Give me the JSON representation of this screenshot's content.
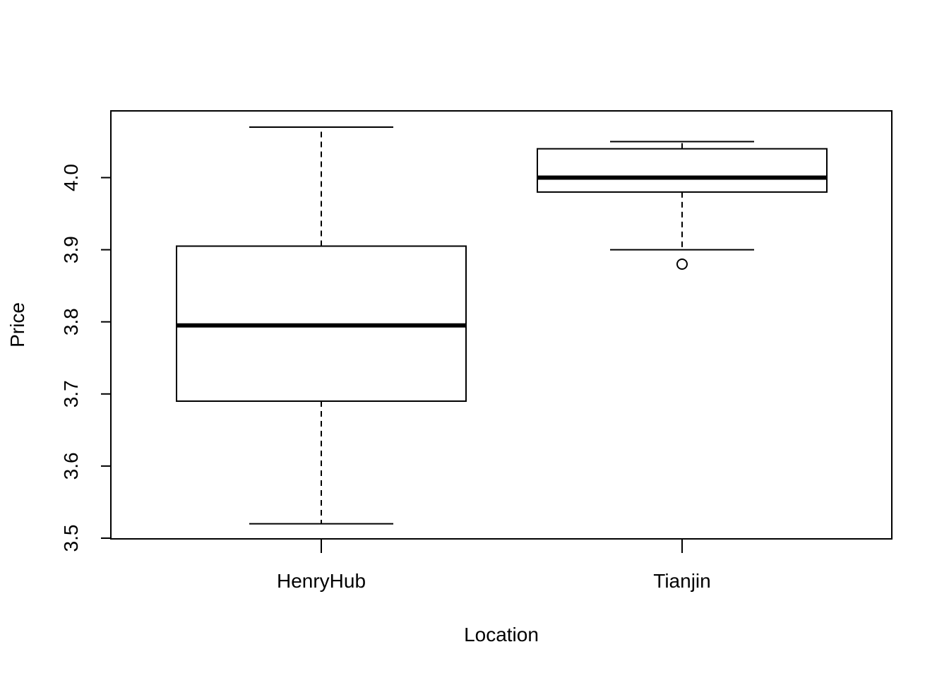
{
  "chart_data": {
    "type": "boxplot",
    "title": "",
    "xlabel": "Location",
    "ylabel": "Price",
    "ylim": [
      3.5,
      4.08
    ],
    "yticks": [
      "3.5",
      "3.6",
      "3.7",
      "3.8",
      "3.9",
      "4.0"
    ],
    "grid": false,
    "categories": [
      "HenryHub",
      "Tianjin"
    ],
    "boxes": [
      {
        "category": "HenryHub",
        "whisker_low": 3.52,
        "q1": 3.69,
        "median": 3.795,
        "q3": 3.905,
        "whisker_high": 4.07,
        "outliers": []
      },
      {
        "category": "Tianjin",
        "whisker_low": 3.9,
        "q1": 3.98,
        "median": 4.0,
        "q3": 4.04,
        "whisker_high": 4.05,
        "outliers": [
          3.88
        ]
      }
    ],
    "colors": {
      "stroke": "#000000",
      "fill": "#ffffff"
    }
  }
}
